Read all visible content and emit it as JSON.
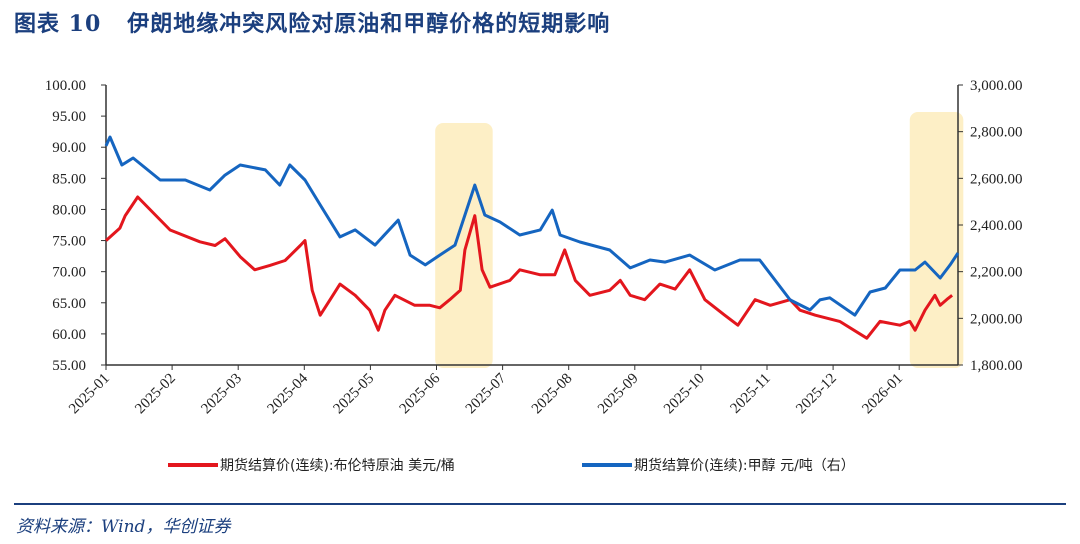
{
  "title": "图表 10   伊朗地缘冲突风险对原油和甲醇价格的短期影响",
  "source": "资料来源：Wind，华创证券",
  "chart_data": {
    "type": "line",
    "title": "伊朗地缘冲突风险对原油和甲醇价格的短期影响",
    "x_unit": "months since 2025-01",
    "x_ticks": [
      "2025-01",
      "2025-02",
      "2025-03",
      "2025-04",
      "2025-05",
      "2025-06",
      "2025-07",
      "2025-08",
      "2025-09",
      "2025-10",
      "2025-11",
      "2025-12",
      "2026-01"
    ],
    "y_left": {
      "range": [
        55,
        100
      ],
      "ticks": [
        "55.00",
        "60.00",
        "65.00",
        "70.00",
        "75.00",
        "80.00",
        "85.00",
        "90.00",
        "95.00",
        "100.00"
      ]
    },
    "y_right": {
      "range": [
        1800,
        3000
      ],
      "ticks": [
        "1,800.00",
        "2,000.00",
        "2,200.00",
        "2,400.00",
        "2,600.00",
        "2,800.00",
        "3,000.00"
      ]
    },
    "highlight_periods": [
      [
        4.98,
        5.85
      ],
      [
        12.16,
        12.97
      ]
    ],
    "highlight_color": "#fdefc6",
    "legend_position": "bottom",
    "series": [
      {
        "name": "期货结算价(连续):布伦特原油 美元/桶",
        "axis": "left",
        "color": "#e3161d",
        "points": [
          [
            0,
            75
          ],
          [
            0.21,
            77
          ],
          [
            0.29,
            79
          ],
          [
            0.48,
            82
          ],
          [
            0.97,
            76.7
          ],
          [
            1.42,
            74.8
          ],
          [
            1.65,
            74.2
          ],
          [
            1.8,
            75.3
          ],
          [
            2.03,
            72.4
          ],
          [
            2.25,
            70.3
          ],
          [
            2.48,
            71
          ],
          [
            2.71,
            71.8
          ],
          [
            2.94,
            74.2
          ],
          [
            3.01,
            75
          ],
          [
            3.12,
            67
          ],
          [
            3.24,
            63
          ],
          [
            3.39,
            65.5
          ],
          [
            3.54,
            68
          ],
          [
            3.77,
            66.2
          ],
          [
            3.99,
            63.8
          ],
          [
            4.12,
            60.6
          ],
          [
            4.22,
            63.8
          ],
          [
            4.37,
            66.2
          ],
          [
            4.67,
            64.6
          ],
          [
            4.9,
            64.6
          ],
          [
            5.05,
            64.2
          ],
          [
            5.2,
            65.5
          ],
          [
            5.36,
            67
          ],
          [
            5.43,
            73.5
          ],
          [
            5.58,
            79
          ],
          [
            5.69,
            70.3
          ],
          [
            5.81,
            67.5
          ],
          [
            6.11,
            68.6
          ],
          [
            6.26,
            70.3
          ],
          [
            6.57,
            69.5
          ],
          [
            6.79,
            69.5
          ],
          [
            6.94,
            73.5
          ],
          [
            7.1,
            68.6
          ],
          [
            7.32,
            66.2
          ],
          [
            7.62,
            67
          ],
          [
            7.78,
            68.6
          ],
          [
            7.93,
            66.2
          ],
          [
            8.15,
            65.5
          ],
          [
            8.38,
            68
          ],
          [
            8.61,
            67.2
          ],
          [
            8.83,
            70.3
          ],
          [
            9.06,
            65.5
          ],
          [
            9.36,
            63
          ],
          [
            9.56,
            61.4
          ],
          [
            9.82,
            65.5
          ],
          [
            10.05,
            64.6
          ],
          [
            10.35,
            65.5
          ],
          [
            10.5,
            63.8
          ],
          [
            10.73,
            63
          ],
          [
            11.1,
            62
          ],
          [
            11.51,
            59.3
          ],
          [
            11.71,
            62
          ],
          [
            12.01,
            61.4
          ],
          [
            12.16,
            62
          ],
          [
            12.24,
            60.6
          ],
          [
            12.39,
            63.8
          ],
          [
            12.54,
            66.2
          ],
          [
            12.62,
            64.6
          ],
          [
            12.74,
            65.7
          ],
          [
            12.8,
            66.2
          ]
        ]
      },
      {
        "name": "期货结算价(连续):甲醇 元/吨（右）",
        "axis": "right",
        "color": "#1565c0",
        "points": [
          [
            0,
            2739
          ],
          [
            0.06,
            2777
          ],
          [
            0.24,
            2657
          ],
          [
            0.41,
            2687
          ],
          [
            0.82,
            2593
          ],
          [
            1.2,
            2593
          ],
          [
            1.57,
            2550
          ],
          [
            1.8,
            2614
          ],
          [
            2.03,
            2657
          ],
          [
            2.41,
            2636
          ],
          [
            2.63,
            2571
          ],
          [
            2.78,
            2657
          ],
          [
            3.01,
            2593
          ],
          [
            3.24,
            2486
          ],
          [
            3.54,
            2349
          ],
          [
            3.77,
            2379
          ],
          [
            4.07,
            2314
          ],
          [
            4.42,
            2421
          ],
          [
            4.6,
            2271
          ],
          [
            4.83,
            2229
          ],
          [
            5.05,
            2271
          ],
          [
            5.28,
            2314
          ],
          [
            5.58,
            2571
          ],
          [
            5.73,
            2443
          ],
          [
            5.96,
            2413
          ],
          [
            6.26,
            2357
          ],
          [
            6.57,
            2379
          ],
          [
            6.75,
            2464
          ],
          [
            6.87,
            2357
          ],
          [
            7.17,
            2327
          ],
          [
            7.62,
            2293
          ],
          [
            7.93,
            2216
          ],
          [
            8.23,
            2250
          ],
          [
            8.46,
            2241
          ],
          [
            8.83,
            2271
          ],
          [
            9.21,
            2207
          ],
          [
            9.59,
            2250
          ],
          [
            9.89,
            2250
          ],
          [
            10.35,
            2079
          ],
          [
            10.65,
            2036
          ],
          [
            10.8,
            2079
          ],
          [
            10.95,
            2088
          ],
          [
            11.33,
            2014
          ],
          [
            11.56,
            2113
          ],
          [
            11.79,
            2130
          ],
          [
            12.01,
            2207
          ],
          [
            12.24,
            2207
          ],
          [
            12.39,
            2241
          ],
          [
            12.62,
            2173
          ],
          [
            12.77,
            2229
          ],
          [
            12.89,
            2280
          ]
        ]
      }
    ]
  }
}
